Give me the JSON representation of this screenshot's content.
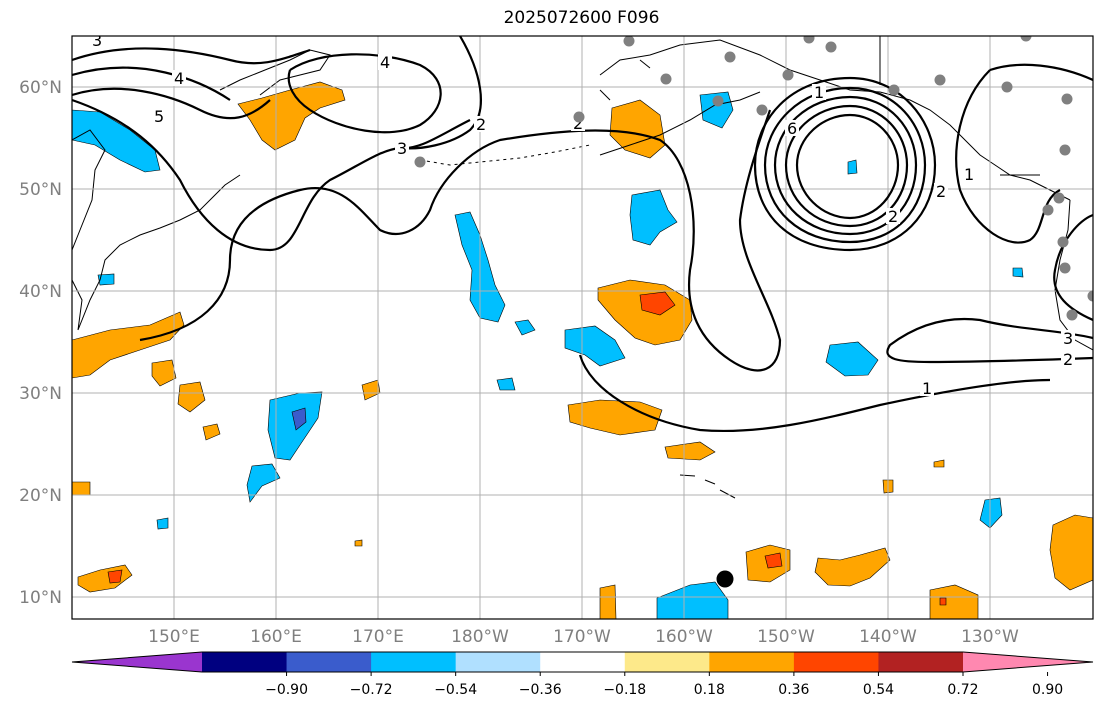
{
  "title": "2025072600 F096",
  "lat_labels": [
    "60°N",
    "50°N",
    "40°N",
    "30°N",
    "20°N",
    "10°N"
  ],
  "lon_labels": [
    "150°E",
    "160°E",
    "170°E",
    "180°W",
    "170°W",
    "160°W",
    "150°W",
    "140°W",
    "130°W"
  ],
  "colorbar": {
    "colors": [
      "#9a35cf",
      "#000080",
      "#3a5ccc",
      "#00bfff",
      "#b0e0ff",
      "#ffffff",
      "#fde98a",
      "#ffa500",
      "#ff4500",
      "#b22222",
      "#ff88b0"
    ],
    "tick_labels": [
      "−0.90",
      "−0.72",
      "−0.54",
      "−0.36",
      "−0.18",
      "0.18",
      "0.36",
      "0.54",
      "0.72",
      "0.90"
    ]
  },
  "contour_labels": [
    "3",
    "4",
    "5",
    "4",
    "3",
    "2",
    "2",
    "6",
    "1",
    "2",
    "1",
    "2",
    "3",
    "1",
    "2",
    "3"
  ],
  "colors": {
    "ocean": "#ffffff",
    "coast": "#000000",
    "contour": "#000000",
    "station_marker": "#808080",
    "storm_marker": "#000000",
    "grid": "#b0b0b0"
  }
}
